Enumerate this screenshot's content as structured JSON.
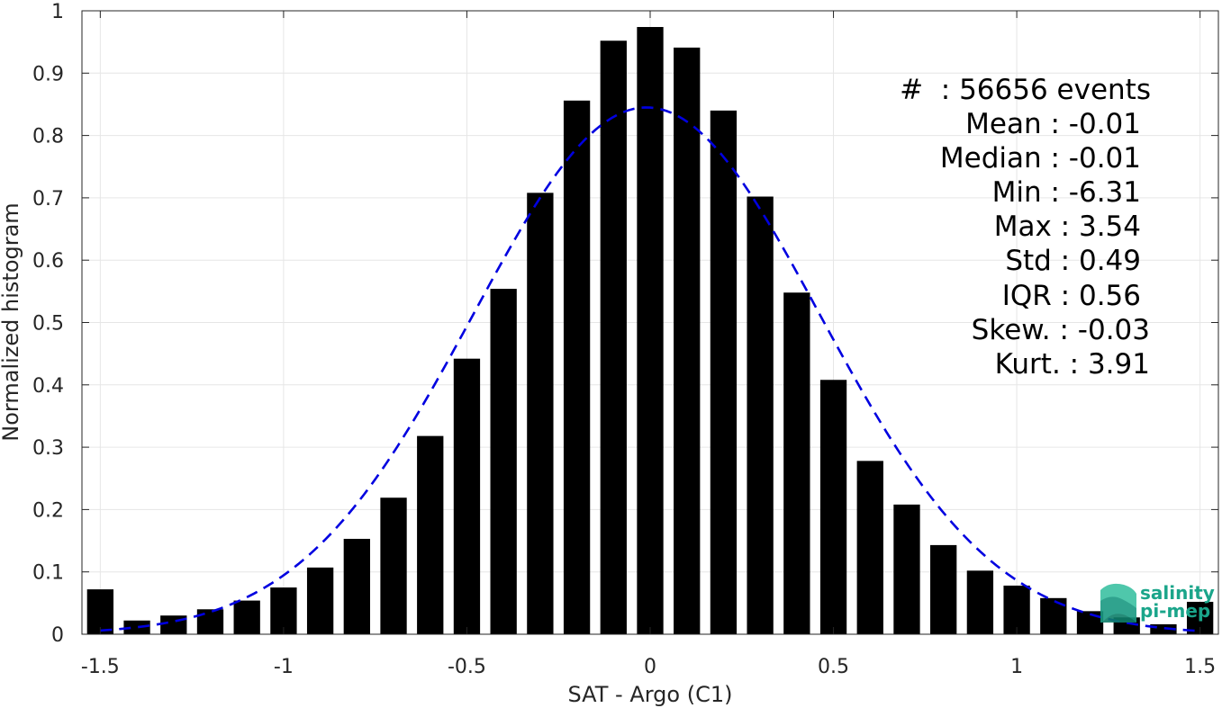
{
  "chart_data": {
    "type": "bar",
    "xlabel": "SAT - Argo (C1)",
    "ylabel": "Normalized histogram",
    "xlim": [
      -1.55,
      1.55
    ],
    "ylim": [
      0,
      1
    ],
    "x_ticks": [
      -1.5,
      -1,
      -0.5,
      0,
      0.5,
      1,
      1.5
    ],
    "x_tick_labels": [
      "-1.5",
      "-1",
      "-0.5",
      "0",
      "0.5",
      "1",
      "1.5"
    ],
    "y_ticks": [
      0,
      0.1,
      0.2,
      0.3,
      0.4,
      0.5,
      0.6,
      0.7,
      0.8,
      0.9,
      1
    ],
    "y_tick_labels": [
      "0",
      "0.1",
      "0.2",
      "0.3",
      "0.4",
      "0.5",
      "0.6",
      "0.7",
      "0.8",
      "0.9",
      "1"
    ],
    "grid": true,
    "bar_width": 0.072,
    "series": [
      {
        "type": "bar",
        "color": "#000000",
        "x": [
          -1.5,
          -1.4,
          -1.3,
          -1.2,
          -1.1,
          -1.0,
          -0.9,
          -0.8,
          -0.7,
          -0.6,
          -0.5,
          -0.4,
          -0.3,
          -0.2,
          -0.1,
          0.0,
          0.1,
          0.2,
          0.3,
          0.4,
          0.5,
          0.6,
          0.7,
          0.8,
          0.9,
          1.0,
          1.1,
          1.2,
          1.3,
          1.4,
          1.5
        ],
        "values": [
          0.072,
          0.022,
          0.03,
          0.04,
          0.054,
          0.075,
          0.107,
          0.153,
          0.219,
          0.318,
          0.442,
          0.554,
          0.708,
          0.856,
          0.952,
          0.974,
          0.941,
          0.84,
          0.702,
          0.548,
          0.408,
          0.278,
          0.208,
          0.143,
          0.102,
          0.078,
          0.058,
          0.037,
          0.027,
          0.016,
          0.052
        ]
      },
      {
        "type": "line",
        "style": "dashed",
        "color": "#0000e0",
        "mean": -0.01,
        "std": 0.473,
        "peak": 0.845,
        "x_range": [
          -1.5,
          1.5
        ]
      }
    ],
    "annotations": [
      "#  : 56656 events",
      "Mean : -0.01",
      "Median : -0.01",
      "Min : -6.31",
      "Max : 3.54",
      "Std : 0.49",
      "IQR : 0.56",
      "Skew. : -0.03",
      "Kurt. : 3.91"
    ]
  },
  "logo": {
    "line1": "salinity",
    "line2": "pi-mep",
    "color": "#1aa58a"
  }
}
